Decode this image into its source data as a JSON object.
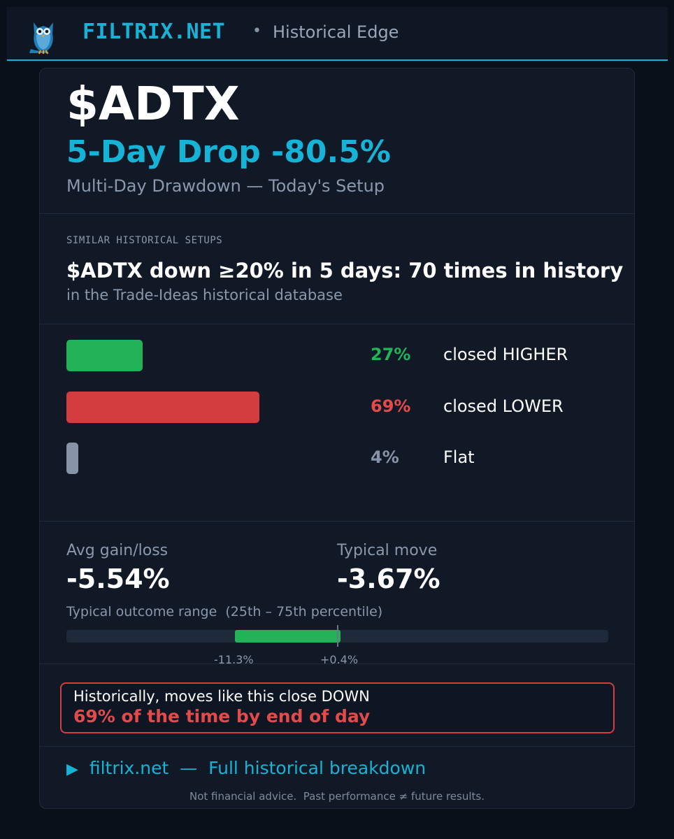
{
  "header": {
    "brand": "FILTRIX.NET",
    "separator": "•",
    "tagline": "Historical Edge",
    "logo_icon": "owl-icon"
  },
  "setup": {
    "ticker": "$ADTX",
    "headline": "5-Day Drop -80.5%",
    "subtitle": "Multi-Day Drawdown — Today's Setup"
  },
  "similar": {
    "label": "SIMILAR HISTORICAL SETUPS",
    "headline": "$ADTX down ≥20% in 5 days: 70 times in history",
    "subtext": "in the Trade-Ideas historical database"
  },
  "outcomes": [
    {
      "percent_value": 27,
      "percent": "27%",
      "label": "closed HIGHER",
      "color": "#22b257"
    },
    {
      "percent_value": 69,
      "percent": "69%",
      "label": "closed LOWER",
      "color": "#d43d40"
    },
    {
      "percent_value": 4,
      "percent": "4%",
      "label": "Flat",
      "color": "#8794a7"
    }
  ],
  "stats": {
    "avg_label": "Avg gain/loss",
    "avg_value": "-5.54%",
    "typical_label": "Typical move",
    "typical_value": "-3.67%"
  },
  "range": {
    "label": "Typical outcome range  (25th – 75th percentile)",
    "low": "-11.3%",
    "high": "+0.4%"
  },
  "verdict": {
    "line1": "Historically, moves like this close DOWN",
    "line2": "69% of the time by end of day"
  },
  "footer": {
    "cta_arrow": "▶",
    "cta_text": "filtrix.net  —  Full historical breakdown",
    "disclaimer": "Not financial advice.  Past performance ≠ future results."
  },
  "colors": {
    "accent": "#16b3d6",
    "positive": "#22b257",
    "negative": "#d43d40",
    "neutral": "#8794a7",
    "background": "#0a101a",
    "card": "#111927"
  }
}
